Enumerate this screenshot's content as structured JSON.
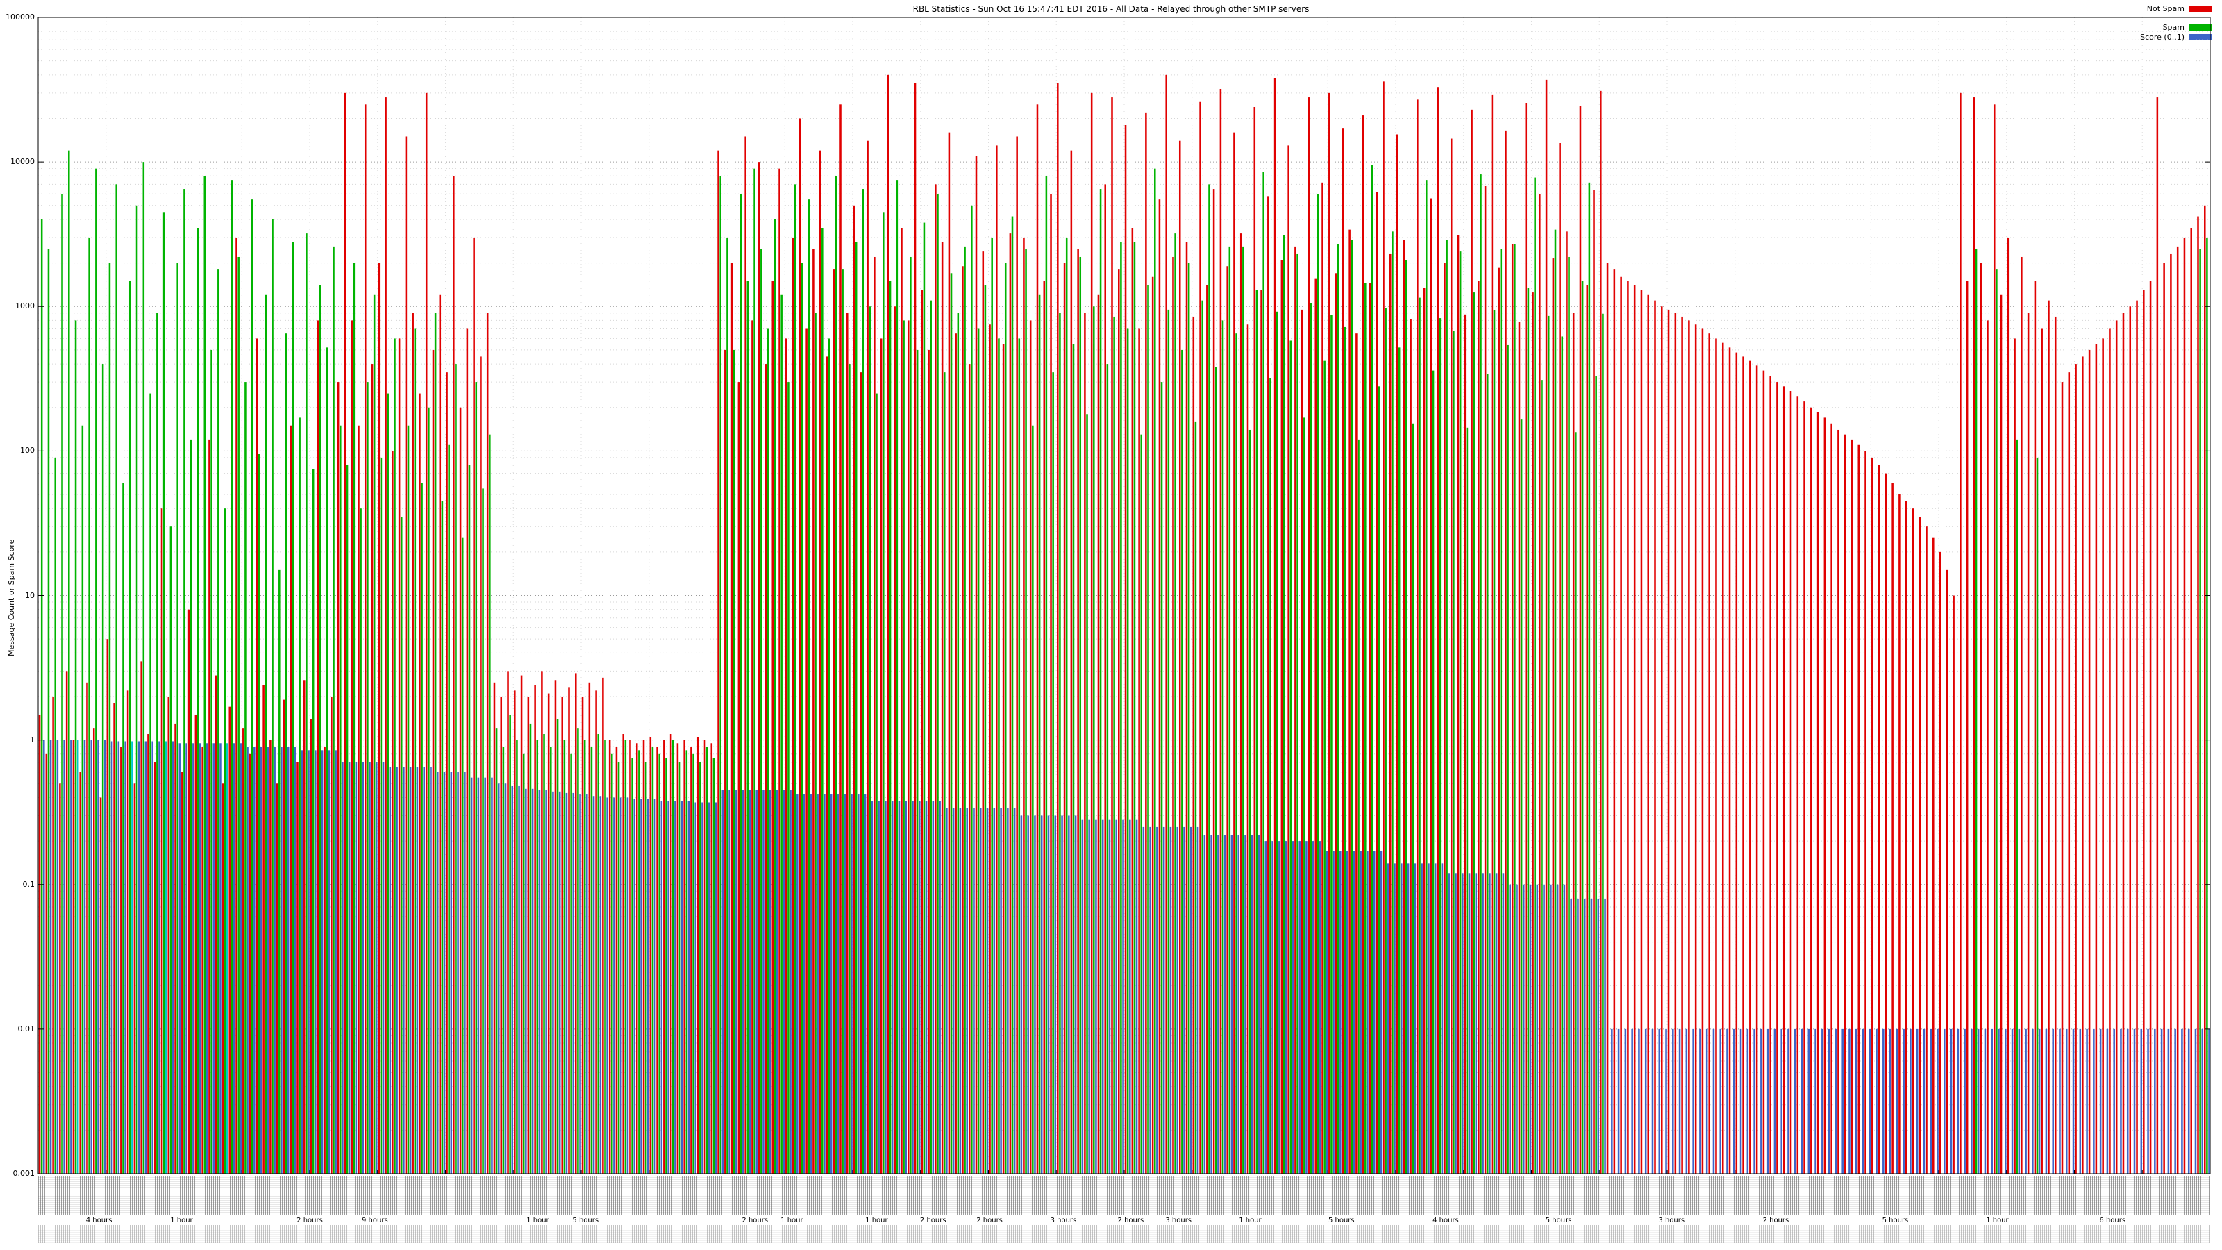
{
  "chart_data": {
    "type": "bar",
    "title": "RBL Statistics - Sun Oct 16 15:47:41 EDT 2016 - All Data - Relayed through other SMTP servers",
    "ylabel": "Message Count or Spam Score",
    "y_scale": "log",
    "ylim": [
      0.001,
      100000
    ],
    "y_ticks": [
      "100000",
      "10000",
      "1000",
      "100",
      "10",
      "1",
      "0.1",
      "0.01",
      "0.001"
    ],
    "grid": true,
    "legend_position": "top-right",
    "legend": [
      {
        "label": "Not Spam",
        "color": "#e10000"
      },
      {
        "label": "Spam",
        "color": "#00b400"
      },
      {
        "label": "Score (0..1)",
        "color": "#3c64c8"
      }
    ],
    "highlight_color": "#00c8c8",
    "cyan_indices": [
      5,
      13,
      18,
      27
    ],
    "x_hour_labels": [
      {
        "label": "4 hours",
        "x": 0.028
      },
      {
        "label": "1 hour",
        "x": 0.066
      },
      {
        "label": "2 hours",
        "x": 0.125
      },
      {
        "label": "9 hours",
        "x": 0.155
      },
      {
        "label": "1 hour",
        "x": 0.23
      },
      {
        "label": "5 hours",
        "x": 0.252
      },
      {
        "label": "2 hours",
        "x": 0.33
      },
      {
        "label": "1 hour",
        "x": 0.347
      },
      {
        "label": "1 hour",
        "x": 0.386
      },
      {
        "label": "2 hours",
        "x": 0.412
      },
      {
        "label": "2 hours",
        "x": 0.438
      },
      {
        "label": "3 hours",
        "x": 0.472
      },
      {
        "label": "2 hours",
        "x": 0.503
      },
      {
        "label": "3 hours",
        "x": 0.525
      },
      {
        "label": "1 hour",
        "x": 0.558
      },
      {
        "label": "5 hours",
        "x": 0.6
      },
      {
        "label": "4 hours",
        "x": 0.648
      },
      {
        "label": "5 hours",
        "x": 0.7
      },
      {
        "label": "3 hours",
        "x": 0.752
      },
      {
        "label": "2 hours",
        "x": 0.8
      },
      {
        "label": "5 hours",
        "x": 0.855
      },
      {
        "label": "1 hour",
        "x": 0.902
      },
      {
        "label": "6 hours",
        "x": 0.955
      }
    ],
    "series": {
      "not_spam": [
        1.5,
        0.8,
        2,
        0.5,
        3,
        1,
        0.6,
        2.5,
        1.2,
        0.4,
        5,
        1.8,
        0.9,
        2.2,
        0.5,
        3.5,
        1.1,
        0.7,
        40,
        2,
        1.3,
        0.6,
        8,
        1.5,
        0.9,
        120,
        2.8,
        0.5,
        1.7,
        3000,
        1.2,
        0.8,
        600,
        2.4,
        1,
        0.5,
        1.9,
        150,
        0.7,
        2.6,
        1.4,
        800,
        0.9,
        2,
        300,
        30000,
        800,
        150,
        25000,
        400,
        2000,
        28000,
        100,
        600,
        15000,
        900,
        250,
        30000,
        500,
        1200,
        350,
        8000,
        200,
        700,
        3000,
        450,
        900,
        2.5,
        2,
        3,
        2.2,
        2.8,
        2,
        2.4,
        3,
        2.1,
        2.6,
        2,
        2.3,
        2.9,
        2,
        2.5,
        2.2,
        2.7,
        1,
        0.9,
        1.1,
        1,
        0.95,
        1,
        1.05,
        0.9,
        1,
        1.1,
        0.95,
        1,
        0.9,
        1.05,
        1,
        0.95,
        12000,
        500,
        2000,
        300,
        15000,
        800,
        10000,
        400,
        1500,
        9000,
        600,
        3000,
        20000,
        700,
        2500,
        12000,
        450,
        1800,
        25000,
        900,
        5000,
        350,
        14000,
        2200,
        600,
        40000,
        1000,
        3500,
        800,
        35000,
        1300,
        500,
        7000,
        2800,
        16000,
        650,
        1900,
        400,
        11000,
        2400,
        750,
        13000,
        550,
        3200,
        15000,
        3000,
        800,
        25000,
        1500,
        6000,
        35000,
        2000,
        12000,
        2500,
        900,
        30000,
        1200,
        7000,
        28000,
        1800,
        18000,
        3500,
        700,
        22000,
        1600,
        5500,
        40000,
        2200,
        14000,
        2800,
        850,
        26000,
        1400,
        6500,
        32000,
        1900,
        16000,
        3200,
        750,
        24000,
        1300,
        5800,
        38000,
        2100,
        13000,
        2600,
        950,
        28000,
        1550,
        7200,
        30000,
        1700,
        17000,
        3400,
        650,
        21000,
        1450,
        6200,
        36000,
        2300,
        15500,
        2900,
        820,
        27000,
        1350,
        5600,
        33000,
        2000,
        14500,
        3100,
        880,
        23000,
        1500,
        6800,
        29000,
        1850,
        16500,
        2700,
        780,
        25500,
        1250,
        6000,
        37000,
        2150,
        13500,
        3300,
        900,
        24500,
        1400,
        6400,
        31000,
        2000,
        1800,
        1600,
        1500,
        1400,
        1300,
        1200,
        1100,
        1000,
        950,
        900,
        850,
        800,
        750,
        700,
        650,
        600,
        560,
        520,
        480,
        450,
        420,
        390,
        360,
        330,
        300,
        280,
        260,
        240,
        220,
        200,
        185,
        170,
        155,
        140,
        130,
        120,
        110,
        100,
        90,
        80,
        70,
        60,
        50,
        45,
        40,
        35,
        30,
        25,
        20,
        15,
        10,
        30000,
        1500,
        28000,
        2000,
        800,
        25000,
        1200,
        3000,
        600,
        2200,
        900,
        1500,
        700,
        1100,
        850,
        300,
        350,
        400,
        450,
        500,
        550,
        600,
        700,
        800,
        900,
        1000,
        1100,
        1300,
        1500,
        28000,
        2000,
        2300,
        2600,
        3000,
        3500,
        4200,
        5000
      ],
      "spam": [
        4000,
        2500,
        90,
        6000,
        12000,
        800,
        150,
        3000,
        9000,
        400,
        2000,
        7000,
        60,
        1500,
        5000,
        10000,
        250,
        900,
        4500,
        30,
        2000,
        6500,
        120,
        3500,
        8000,
        500,
        1800,
        40,
        7500,
        2200,
        300,
        5500,
        95,
        1200,
        4000,
        15,
        650,
        2800,
        170,
        3200,
        75,
        1400,
        520,
        2600,
        150,
        80,
        2000,
        40,
        300,
        1200,
        90,
        250,
        600,
        35,
        150,
        700,
        60,
        200,
        900,
        45,
        110,
        400,
        25,
        80,
        300,
        55,
        130,
        1.2,
        0.9,
        1.5,
        1,
        0.8,
        1.3,
        1,
        1.1,
        0.9,
        1.4,
        1,
        0.8,
        1.2,
        1,
        0.9,
        1.1,
        1,
        0.8,
        0.7,
        1,
        0.75,
        0.85,
        0.7,
        0.9,
        0.8,
        0.75,
        1,
        0.7,
        0.85,
        0.8,
        0.7,
        0.9,
        0.75,
        8000,
        3000,
        500,
        6000,
        1500,
        9000,
        2500,
        700,
        4000,
        1200,
        300,
        7000,
        2000,
        5500,
        900,
        3500,
        600,
        8000,
        1800,
        400,
        2800,
        6500,
        1000,
        250,
        4500,
        1500,
        7500,
        800,
        2200,
        500,
        3800,
        1100,
        6000,
        350,
        1700,
        900,
        2600,
        5000,
        700,
        1400,
        3000,
        600,
        2000,
        4200,
        600,
        2500,
        150,
        1200,
        8000,
        350,
        900,
        3000,
        550,
        2200,
        180,
        1000,
        6500,
        400,
        850,
        2800,
        700,
        2800,
        130,
        1400,
        9000,
        300,
        950,
        3200,
        500,
        2000,
        160,
        1100,
        7000,
        380,
        800,
        2600,
        650,
        2600,
        140,
        1300,
        8500,
        320,
        920,
        3100,
        580,
        2300,
        170,
        1050,
        6000,
        420,
        870,
        2700,
        720,
        2900,
        120,
        1450,
        9500,
        280,
        980,
        3300,
        520,
        2100,
        155,
        1150,
        7500,
        360,
        830,
        2900,
        680,
        2400,
        145,
        1250,
        8200,
        340,
        940,
        2500,
        540,
        2700,
        165,
        1350,
        7800,
        310,
        860,
        3400,
        620,
        2200,
        135,
        1500,
        7200,
        330,
        890,
        0,
        0,
        0,
        0,
        0,
        0,
        0,
        0,
        0,
        0,
        0,
        0,
        0,
        0,
        0,
        0,
        0,
        0,
        0,
        0,
        0,
        0,
        0,
        0,
        0,
        0,
        0,
        0,
        0,
        0,
        0,
        0,
        0,
        0,
        0,
        0,
        0,
        0,
        0,
        0,
        0,
        0,
        0,
        0,
        0,
        0,
        0,
        0,
        0,
        0,
        0,
        0,
        0,
        0,
        2500,
        0,
        0,
        1800,
        0,
        0,
        120,
        0,
        0,
        90,
        0,
        0,
        0,
        0,
        0,
        0,
        0,
        0,
        0,
        0,
        0,
        0,
        0,
        0,
        0,
        0,
        0,
        0,
        0,
        0,
        0,
        0,
        0,
        2500,
        3000
      ],
      "score": [
        1,
        1,
        1,
        1,
        1,
        1,
        1,
        1,
        1,
        1,
        0.98,
        0.98,
        0.98,
        0.98,
        0.98,
        0.98,
        0.98,
        0.98,
        0.98,
        0.98,
        0.95,
        0.95,
        0.95,
        0.95,
        0.95,
        0.95,
        0.95,
        0.95,
        0.95,
        0.95,
        0.9,
        0.9,
        0.9,
        0.9,
        0.9,
        0.9,
        0.9,
        0.9,
        0.85,
        0.85,
        0.85,
        0.85,
        0.85,
        0.85,
        0.7,
        0.7,
        0.7,
        0.7,
        0.7,
        0.7,
        0.7,
        0.65,
        0.65,
        0.65,
        0.65,
        0.65,
        0.65,
        0.65,
        0.6,
        0.6,
        0.6,
        0.6,
        0.6,
        0.55,
        0.55,
        0.55,
        0.55,
        0.5,
        0.5,
        0.48,
        0.48,
        0.46,
        0.46,
        0.45,
        0.45,
        0.44,
        0.44,
        0.43,
        0.43,
        0.42,
        0.42,
        0.41,
        0.41,
        0.4,
        0.4,
        0.4,
        0.4,
        0.39,
        0.39,
        0.39,
        0.39,
        0.38,
        0.38,
        0.38,
        0.38,
        0.38,
        0.37,
        0.37,
        0.37,
        0.37,
        0.45,
        0.45,
        0.45,
        0.45,
        0.45,
        0.45,
        0.45,
        0.45,
        0.45,
        0.45,
        0.45,
        0.42,
        0.42,
        0.42,
        0.42,
        0.42,
        0.42,
        0.42,
        0.42,
        0.42,
        0.42,
        0.42,
        0.38,
        0.38,
        0.38,
        0.38,
        0.38,
        0.38,
        0.38,
        0.38,
        0.38,
        0.38,
        0.38,
        0.34,
        0.34,
        0.34,
        0.34,
        0.34,
        0.34,
        0.34,
        0.34,
        0.34,
        0.34,
        0.34,
        0.3,
        0.3,
        0.3,
        0.3,
        0.3,
        0.3,
        0.3,
        0.3,
        0.3,
        0.28,
        0.28,
        0.28,
        0.28,
        0.28,
        0.28,
        0.28,
        0.28,
        0.28,
        0.25,
        0.25,
        0.25,
        0.25,
        0.25,
        0.25,
        0.25,
        0.25,
        0.25,
        0.22,
        0.22,
        0.22,
        0.22,
        0.22,
        0.22,
        0.22,
        0.22,
        0.22,
        0.2,
        0.2,
        0.2,
        0.2,
        0.2,
        0.2,
        0.2,
        0.2,
        0.2,
        0.17,
        0.17,
        0.17,
        0.17,
        0.17,
        0.17,
        0.17,
        0.17,
        0.17,
        0.14,
        0.14,
        0.14,
        0.14,
        0.14,
        0.14,
        0.14,
        0.14,
        0.14,
        0.12,
        0.12,
        0.12,
        0.12,
        0.12,
        0.12,
        0.12,
        0.12,
        0.12,
        0.1,
        0.1,
        0.1,
        0.1,
        0.1,
        0.1,
        0.1,
        0.1,
        0.1,
        0.08,
        0.08,
        0.08,
        0.08,
        0.08,
        0.08,
        0.01,
        0.01,
        0.01,
        0.01,
        0.01,
        0.01,
        0.01,
        0.01,
        0.01,
        0.01,
        0.01,
        0.01,
        0.01,
        0.01,
        0.01,
        0.01,
        0.01,
        0.01,
        0.01,
        0.01,
        0.01,
        0.01,
        0.01,
        0.01,
        0.01,
        0.01,
        0.01,
        0.01,
        0.01,
        0.01,
        0.01,
        0.01,
        0.01,
        0.01,
        0.01,
        0.01,
        0.01,
        0.01,
        0.01,
        0.01,
        0.01,
        0.01,
        0.01,
        0.01,
        0.01,
        0.01,
        0.01,
        0.01,
        0.01,
        0.01,
        0.01,
        0.01,
        0.01,
        0.01,
        0.01,
        0.01,
        0.01,
        0.01,
        0.01,
        0.01,
        0.01,
        0.01,
        0.01,
        0.01,
        0.01,
        0.01,
        0.01,
        0.01,
        0.01,
        0.01,
        0.01,
        0.01,
        0.01,
        0.01,
        0.01,
        0.01,
        0.01,
        0.01,
        0.01,
        0.01,
        0.01,
        0.01,
        0.01,
        0.01,
        0.01,
        0.01,
        0.01,
        0.01,
        0.01
      ]
    }
  }
}
